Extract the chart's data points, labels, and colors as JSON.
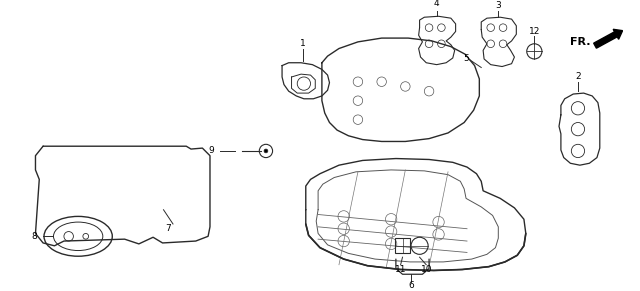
{
  "background_color": "#ffffff",
  "line_color": "#2a2a2a",
  "figsize": [
    6.4,
    2.91
  ],
  "dpi": 100,
  "label_fontsize": 6.5,
  "fr_fontsize": 8.0
}
